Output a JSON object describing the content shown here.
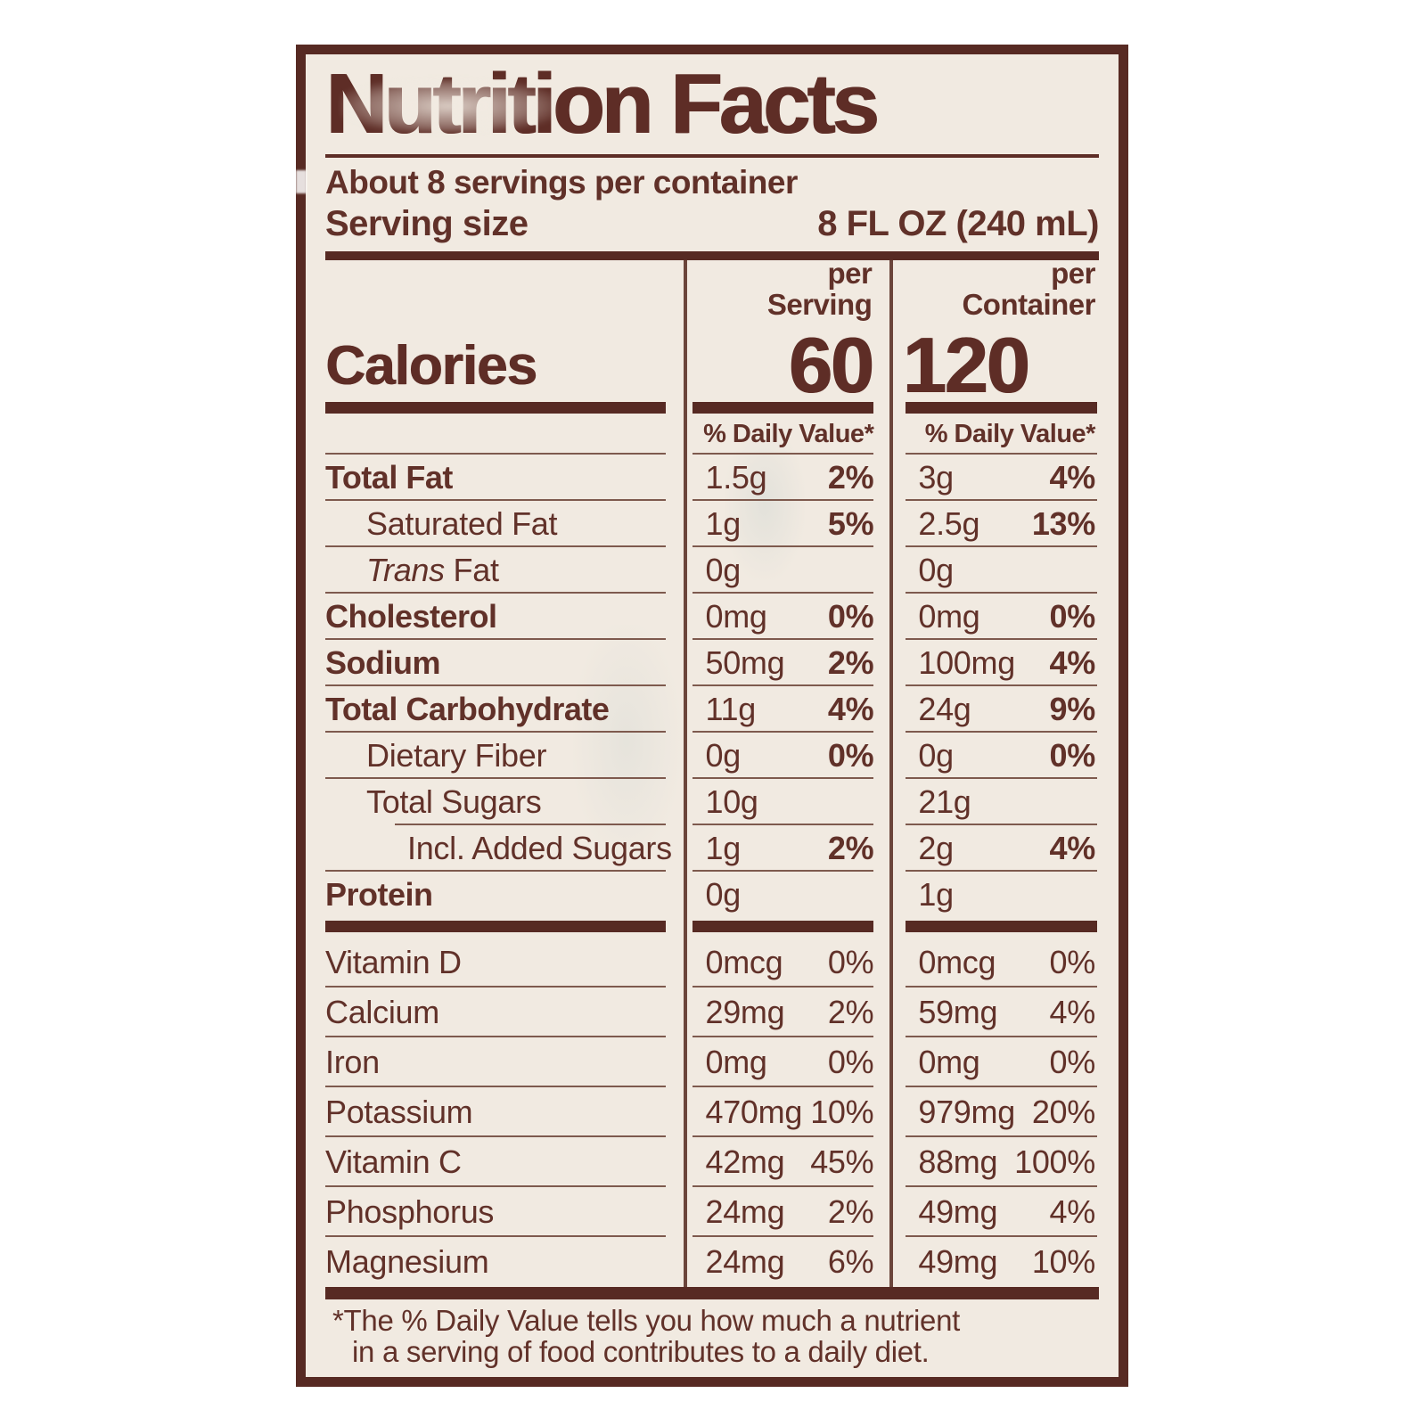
{
  "colors": {
    "text": "#613129",
    "bold_text": "#5e2d26",
    "thick_bar": "#572a23",
    "hairline": "#7e5a4e",
    "divider": "#6b453b",
    "label_background": "#f1eae1",
    "page_background": "#ffffff"
  },
  "header": {
    "title": "Nutrition Facts",
    "servings_per_container": "About 8 servings per container",
    "serving_size_label": "Serving size",
    "serving_size_value": "8 FL OZ (240 mL)"
  },
  "columns": {
    "serving": {
      "line1": "per",
      "line2": "Serving"
    },
    "container": {
      "line1": "per",
      "line2": "Container"
    }
  },
  "calories": {
    "label": "Calories",
    "per_serving": "60",
    "per_container": "120"
  },
  "daily_value_header": "% Daily Value*",
  "main_rows": [
    {
      "name": "Total Fat",
      "bold": true,
      "indent": 0,
      "serving": {
        "amount": "1.5g",
        "dv": "2%"
      },
      "container": {
        "amount": "3g",
        "dv": "4%"
      }
    },
    {
      "name": "Saturated Fat",
      "bold": false,
      "indent": 1,
      "serving": {
        "amount": "1g",
        "dv": "5%"
      },
      "container": {
        "amount": "2.5g",
        "dv": "13%"
      }
    },
    {
      "name": "Trans Fat",
      "italic_lead": "Trans",
      "name_rest": " Fat",
      "bold": false,
      "indent": 1,
      "serving": {
        "amount": "0g",
        "dv": ""
      },
      "container": {
        "amount": "0g",
        "dv": ""
      }
    },
    {
      "name": "Cholesterol",
      "bold": true,
      "indent": 0,
      "serving": {
        "amount": "0mg",
        "dv": "0%"
      },
      "container": {
        "amount": "0mg",
        "dv": "0%"
      }
    },
    {
      "name": "Sodium",
      "bold": true,
      "indent": 0,
      "serving": {
        "amount": "50mg",
        "dv": "2%"
      },
      "container": {
        "amount": "100mg",
        "dv": "4%"
      }
    },
    {
      "name": "Total Carbohydrate",
      "bold": true,
      "indent": 0,
      "serving": {
        "amount": "11g",
        "dv": "4%"
      },
      "container": {
        "amount": "24g",
        "dv": "9%"
      }
    },
    {
      "name": "Dietary Fiber",
      "bold": false,
      "indent": 1,
      "serving": {
        "amount": "0g",
        "dv": "0%"
      },
      "container": {
        "amount": "0g",
        "dv": "0%"
      }
    },
    {
      "name": "Total Sugars",
      "bold": false,
      "indent": 1,
      "hairline_indent": true,
      "serving": {
        "amount": "10g",
        "dv": ""
      },
      "container": {
        "amount": "21g",
        "dv": ""
      }
    },
    {
      "name": "Incl. Added Sugars",
      "bold": false,
      "indent": 2,
      "serving": {
        "amount": "1g",
        "dv": "2%"
      },
      "container": {
        "amount": "2g",
        "dv": "4%"
      }
    },
    {
      "name": "Protein",
      "bold": true,
      "indent": 0,
      "no_hairline": true,
      "serving": {
        "amount": "0g",
        "dv": ""
      },
      "container": {
        "amount": "1g",
        "dv": ""
      }
    }
  ],
  "micro_rows": [
    {
      "name": "Vitamin D",
      "serving": {
        "amount": "0mcg",
        "dv": "0%"
      },
      "container": {
        "amount": "0mcg",
        "dv": "0%"
      }
    },
    {
      "name": "Calcium",
      "serving": {
        "amount": "29mg",
        "dv": "2%"
      },
      "container": {
        "amount": "59mg",
        "dv": "4%"
      }
    },
    {
      "name": "Iron",
      "serving": {
        "amount": "0mg",
        "dv": "0%"
      },
      "container": {
        "amount": "0mg",
        "dv": "0%"
      }
    },
    {
      "name": "Potassium",
      "serving": {
        "amount": "470mg",
        "dv": "10%"
      },
      "container": {
        "amount": "979mg",
        "dv": "20%"
      }
    },
    {
      "name": "Vitamin C",
      "serving": {
        "amount": "42mg",
        "dv": "45%"
      },
      "container": {
        "amount": "88mg",
        "dv": "100%"
      }
    },
    {
      "name": "Phosphorus",
      "serving": {
        "amount": "24mg",
        "dv": "2%"
      },
      "container": {
        "amount": "49mg",
        "dv": "4%"
      }
    },
    {
      "name": "Magnesium",
      "no_hairline": true,
      "serving": {
        "amount": "24mg",
        "dv": "6%"
      },
      "container": {
        "amount": "49mg",
        "dv": "10%"
      }
    }
  ],
  "footnote": {
    "line1": "*The % Daily Value tells you how much a nutrient",
    "line2": "in a serving of food contributes to a daily diet."
  }
}
